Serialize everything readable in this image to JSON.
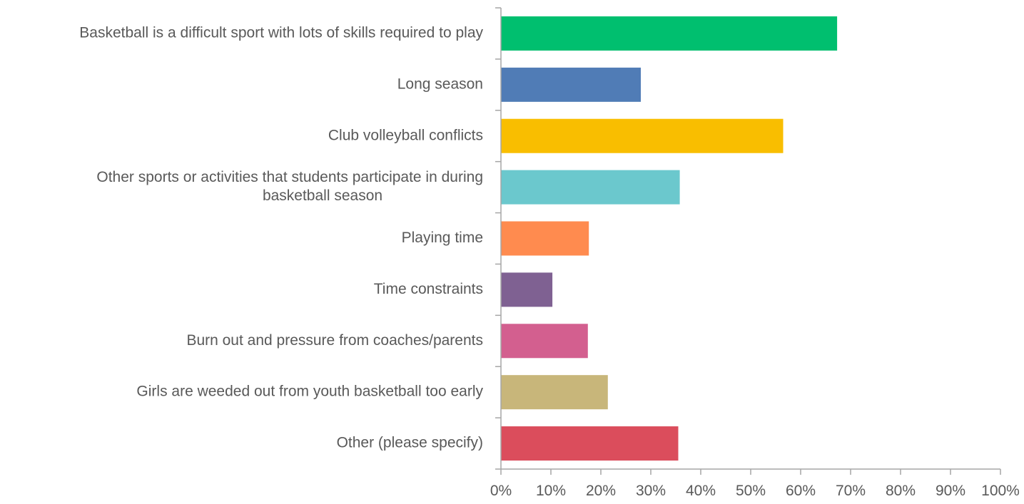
{
  "chart_data": {
    "type": "bar",
    "orientation": "horizontal",
    "title": "",
    "xlabel": "",
    "ylabel": "",
    "xlim": [
      0,
      100
    ],
    "grid": false,
    "legend": "none",
    "tick_labels": [
      "0%",
      "10%",
      "20%",
      "30%",
      "40%",
      "50%",
      "60%",
      "70%",
      "80%",
      "90%",
      "100%"
    ],
    "categories": [
      [
        "Basketball is a difficult sport with lots of skills required to play"
      ],
      [
        "Long season"
      ],
      [
        "Club volleyball conflicts"
      ],
      [
        "Other sports or activities that students participate in during",
        "basketball season"
      ],
      [
        "Playing time"
      ],
      [
        "Time constraints"
      ],
      [
        "Burn out and pressure from coaches/parents"
      ],
      [
        "Girls are weeded out from youth basketball too early"
      ],
      [
        "Other (please specify)"
      ]
    ],
    "values": [
      67.3,
      28.0,
      56.5,
      35.8,
      17.6,
      10.3,
      17.4,
      21.4,
      35.5
    ],
    "colors": [
      "#00bf6f",
      "#507cb6",
      "#f9be00",
      "#6bc8cd",
      "#ff8b4f",
      "#7f6192",
      "#d35f8f",
      "#c8b67a",
      "#db4d5c"
    ]
  }
}
